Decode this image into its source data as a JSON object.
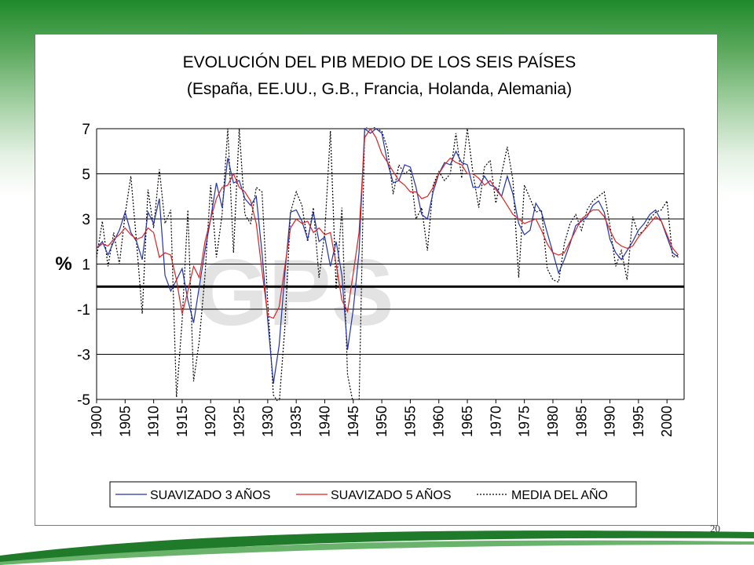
{
  "slide": {
    "page_number": "20",
    "watermark": "GPS"
  },
  "colors": {
    "header_green": "#1f8a2a",
    "series_3yr": "#2233aa",
    "series_5yr": "#dd2222",
    "series_media": "#000000"
  },
  "chart_data": {
    "type": "line",
    "title": "EVOLUCIÓN DEL PIB MEDIO DE LOS SEIS PAÍSES",
    "subtitle": "(España, EE.UU., G.B., Francia, Holanda, Alemania)",
    "ylabel": "%",
    "xlabel": "",
    "ylim": [
      -5,
      7
    ],
    "yticks": [
      "7",
      "5",
      "3",
      "1",
      "-1",
      "-3",
      "-5"
    ],
    "ytick_values": [
      7,
      5,
      3,
      1,
      -1,
      -3,
      -5
    ],
    "xlim": [
      1900,
      2003
    ],
    "xticks": [
      "1900",
      "1905",
      "1910",
      "1915",
      "1920",
      "1925",
      "1930",
      "1935",
      "1940",
      "1945",
      "1950",
      "1955",
      "1960",
      "1965",
      "1970",
      "1975",
      "1980",
      "1985",
      "1990",
      "1995",
      "2000"
    ],
    "xtick_values": [
      1900,
      1905,
      1910,
      1915,
      1920,
      1925,
      1930,
      1935,
      1940,
      1945,
      1950,
      1955,
      1960,
      1965,
      1970,
      1975,
      1980,
      1985,
      1990,
      1995,
      2000
    ],
    "zero_line": 0,
    "grid": "horizontal",
    "legend_position": "bottom",
    "series": [
      {
        "name": "SUAVIZADO 3 AÑOS",
        "style": "solid",
        "x": [
          1900,
          1901,
          1902,
          1903,
          1904,
          1905,
          1906,
          1907,
          1908,
          1909,
          1910,
          1911,
          1912,
          1913,
          1914,
          1915,
          1916,
          1917,
          1918,
          1919,
          1920,
          1921,
          1922,
          1923,
          1924,
          1925,
          1926,
          1927,
          1928,
          1929,
          1930,
          1931,
          1932,
          1933,
          1934,
          1935,
          1936,
          1937,
          1938,
          1939,
          1940,
          1941,
          1942,
          1943,
          1944,
          1945,
          1946,
          1947,
          1948,
          1949,
          1950,
          1951,
          1952,
          1953,
          1954,
          1955,
          1956,
          1957,
          1958,
          1959,
          1960,
          1961,
          1962,
          1963,
          1964,
          1965,
          1966,
          1967,
          1968,
          1969,
          1970,
          1971,
          1972,
          1973,
          1974,
          1975,
          1976,
          1977,
          1978,
          1979,
          1980,
          1981,
          1982,
          1983,
          1984,
          1985,
          1986,
          1987,
          1988,
          1989,
          1990,
          1991,
          1992,
          1993,
          1994,
          1995,
          1996,
          1997,
          1998,
          1999,
          2000,
          2001,
          2002
        ],
        "values": [
          1.7,
          2.0,
          1.4,
          2.0,
          2.5,
          3.3,
          2.4,
          2.0,
          1.2,
          3.3,
          2.8,
          3.9,
          0.5,
          -0.2,
          0.3,
          0.8,
          -0.6,
          -1.6,
          0.0,
          1.6,
          3.0,
          4.6,
          3.5,
          5.7,
          4.6,
          4.7,
          3.9,
          3.6,
          4.0,
          1.5,
          -1.5,
          -4.3,
          -2.6,
          0.6,
          3.3,
          3.4,
          2.9,
          2.1,
          3.3,
          2.0,
          2.2,
          0.9,
          2.0,
          0.5,
          -2.8,
          -1.0,
          1.5,
          7.0,
          6.8,
          7.0,
          6.8,
          5.5,
          4.6,
          4.7,
          5.4,
          5.3,
          4.4,
          3.2,
          3.0,
          4.2,
          5.0,
          5.5,
          5.4,
          6.0,
          5.5,
          5.4,
          4.4,
          4.4,
          4.9,
          4.5,
          4.4,
          4.0,
          4.9,
          4.1,
          2.8,
          2.3,
          2.5,
          3.7,
          3.3,
          2.4,
          1.5,
          0.6,
          1.2,
          1.9,
          2.7,
          2.9,
          3.1,
          3.6,
          3.8,
          3.3,
          2.1,
          1.5,
          1.2,
          1.6,
          2.0,
          2.5,
          2.8,
          3.2,
          3.4,
          2.9,
          2.2,
          1.5,
          1.3
        ]
      },
      {
        "name": "SUAVIZADO 5 AÑOS",
        "style": "solid",
        "x": [
          1900,
          1901,
          1902,
          1903,
          1904,
          1905,
          1906,
          1907,
          1908,
          1909,
          1910,
          1911,
          1912,
          1913,
          1914,
          1915,
          1916,
          1917,
          1918,
          1919,
          1920,
          1921,
          1922,
          1923,
          1924,
          1925,
          1926,
          1927,
          1928,
          1929,
          1930,
          1931,
          1932,
          1933,
          1934,
          1935,
          1936,
          1937,
          1938,
          1939,
          1940,
          1941,
          1942,
          1943,
          1944,
          1945,
          1946,
          1947,
          1948,
          1949,
          1950,
          1951,
          1952,
          1953,
          1954,
          1955,
          1956,
          1957,
          1958,
          1959,
          1960,
          1961,
          1962,
          1963,
          1964,
          1965,
          1966,
          1967,
          1968,
          1969,
          1970,
          1971,
          1972,
          1973,
          1974,
          1975,
          1976,
          1977,
          1978,
          1979,
          1980,
          1981,
          1982,
          1983,
          1984,
          1985,
          1986,
          1987,
          1988,
          1989,
          1990,
          1991,
          1992,
          1993,
          1994,
          1995,
          1996,
          1997,
          1998,
          1999,
          2000,
          2001,
          2002
        ],
        "values": [
          1.7,
          1.9,
          1.8,
          2.1,
          2.3,
          2.6,
          2.3,
          2.1,
          2.2,
          2.6,
          2.4,
          1.3,
          1.5,
          1.4,
          0.3,
          -1.2,
          -0.2,
          0.9,
          0.4,
          2.0,
          3.0,
          3.9,
          4.4,
          4.5,
          5.0,
          4.4,
          4.2,
          3.8,
          2.8,
          0.7,
          -1.3,
          -1.4,
          -0.9,
          0.9,
          2.6,
          3.0,
          2.8,
          2.9,
          2.4,
          2.6,
          2.3,
          2.4,
          1.0,
          -0.6,
          -1.1,
          0.6,
          2.4,
          6.6,
          7.0,
          6.6,
          5.9,
          5.5,
          5.1,
          4.7,
          4.5,
          4.2,
          4.2,
          3.9,
          4.0,
          4.4,
          5.0,
          5.4,
          5.7,
          5.5,
          5.4,
          5.0,
          5.0,
          4.8,
          4.5,
          4.7,
          4.3,
          4.0,
          3.6,
          3.2,
          3.0,
          2.8,
          2.9,
          3.0,
          2.5,
          1.9,
          1.5,
          1.4,
          1.5,
          2.0,
          2.5,
          3.0,
          3.2,
          3.4,
          3.4,
          3.1,
          2.5,
          2.0,
          1.8,
          1.7,
          1.8,
          2.2,
          2.5,
          2.8,
          3.1,
          2.9,
          2.3,
          1.7,
          1.4
        ]
      },
      {
        "name": "MEDIA DEL AÑO",
        "style": "dotted",
        "x": [
          1900,
          1901,
          1902,
          1903,
          1904,
          1905,
          1906,
          1907,
          1908,
          1909,
          1910,
          1911,
          1912,
          1913,
          1914,
          1915,
          1916,
          1917,
          1918,
          1919,
          1920,
          1921,
          1922,
          1923,
          1924,
          1925,
          1926,
          1927,
          1928,
          1929,
          1930,
          1931,
          1932,
          1933,
          1934,
          1935,
          1936,
          1937,
          1938,
          1939,
          1940,
          1941,
          1942,
          1943,
          1944,
          1945,
          1946,
          1947,
          1948,
          1949,
          1950,
          1951,
          1952,
          1953,
          1954,
          1955,
          1956,
          1957,
          1958,
          1959,
          1960,
          1961,
          1962,
          1963,
          1964,
          1965,
          1966,
          1967,
          1968,
          1969,
          1970,
          1971,
          1972,
          1973,
          1974,
          1975,
          1976,
          1977,
          1978,
          1979,
          1980,
          1981,
          1982,
          1983,
          1984,
          1985,
          1986,
          1987,
          1988,
          1989,
          1990,
          1991,
          1992,
          1993,
          1994,
          1995,
          1996,
          1997,
          1998,
          1999,
          2000,
          2001,
          2002
        ],
        "values": [
          1.3,
          2.9,
          0.9,
          2.4,
          1.0,
          3.2,
          4.9,
          2.0,
          -1.2,
          4.3,
          2.6,
          5.2,
          2.8,
          3.4,
          -4.9,
          -1.5,
          3.4,
          -4.2,
          -2.4,
          0.5,
          4.5,
          1.3,
          3.2,
          7.0,
          1.5,
          7.0,
          3.2,
          2.8,
          4.4,
          4.2,
          -0.7,
          -4.8,
          -5.2,
          -1.8,
          3.3,
          4.2,
          3.6,
          2.0,
          3.5,
          0.4,
          2.4,
          6.9,
          -0.1,
          3.5,
          -3.9,
          -5.2,
          -5.3,
          7.0,
          7.2,
          7.0,
          6.9,
          6.1,
          4.1,
          5.4,
          5.0,
          5.2,
          3.0,
          3.5,
          1.6,
          4.5,
          5.1,
          4.7,
          5.0,
          6.8,
          4.8,
          7.0,
          5.0,
          3.5,
          5.3,
          5.6,
          3.7,
          5.0,
          6.2,
          4.7,
          0.4,
          4.5,
          3.9,
          3.3,
          3.4,
          0.8,
          0.3,
          0.2,
          1.9,
          2.8,
          3.2,
          2.5,
          3.4,
          3.8,
          4.0,
          4.2,
          2.7,
          0.9,
          1.6,
          0.3,
          3.1,
          2.3,
          2.5,
          3.0,
          3.3,
          3.4,
          3.8,
          1.3,
          1.4
        ]
      }
    ]
  }
}
